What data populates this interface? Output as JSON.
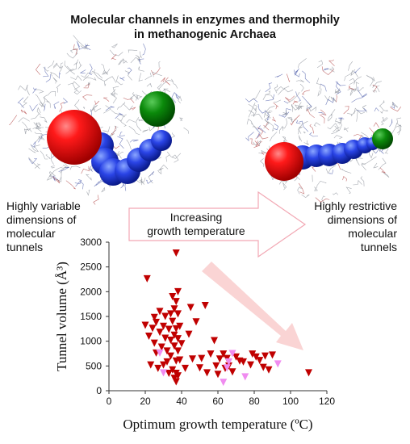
{
  "title_line1": "Molecular channels in enzymes and thermophily",
  "title_line2": "in methanogenic Archaea",
  "left_text": [
    "Highly variable",
    "dimensions of",
    "molecular",
    "tunnels"
  ],
  "right_text": [
    "Highly restrictive",
    "dimensions of",
    "molecular",
    "tunnels"
  ],
  "arrow_text": [
    "Increasing",
    "growth temperature"
  ],
  "colors": {
    "series_main": "#c00000",
    "series_light": "#f08cf0",
    "arrow_fill": "#ffffff",
    "arrow_stroke": "#f2a7b3",
    "trend_arrow": "#f9c9c9"
  },
  "chart_data": {
    "type": "scatter",
    "title": "",
    "xlabel": "Optimum growth temperature (ºC)",
    "ylabel": "Tunnel volume (Å³)",
    "xlim": [
      0,
      120
    ],
    "ylim": [
      0,
      3000
    ],
    "xticks": [
      0,
      20,
      40,
      60,
      80,
      100,
      120
    ],
    "yticks": [
      0,
      500,
      1000,
      1500,
      2000,
      2500,
      3000
    ],
    "xtick_labels": [
      "0",
      "20",
      "40",
      "60",
      "80",
      "100",
      "120"
    ],
    "ytick_labels": [
      "0",
      "500",
      "1000",
      "1500",
      "2000",
      "2500",
      "3000"
    ],
    "grid": false,
    "marker": "triangle-down",
    "series": [
      {
        "color": "#c00000",
        "points": [
          [
            20,
            1320
          ],
          [
            21,
            2260
          ],
          [
            22,
            1100
          ],
          [
            23,
            520
          ],
          [
            24,
            1260
          ],
          [
            25,
            960
          ],
          [
            25,
            1480
          ],
          [
            26,
            1380
          ],
          [
            26,
            760
          ],
          [
            27,
            450
          ],
          [
            28,
            1180
          ],
          [
            28,
            1600
          ],
          [
            29,
            880
          ],
          [
            30,
            1300
          ],
          [
            30,
            520
          ],
          [
            31,
            1060
          ],
          [
            31,
            1500
          ],
          [
            32,
            800
          ],
          [
            32,
            580
          ],
          [
            33,
            1240
          ],
          [
            33,
            350
          ],
          [
            34,
            1550
          ],
          [
            34,
            700
          ],
          [
            34,
            1020
          ],
          [
            35,
            1900
          ],
          [
            35,
            420
          ],
          [
            35,
            1400
          ],
          [
            36,
            1120
          ],
          [
            36,
            250
          ],
          [
            36,
            900
          ],
          [
            36,
            1650
          ],
          [
            37,
            2780
          ],
          [
            37,
            1800
          ],
          [
            37,
            1250
          ],
          [
            37,
            600
          ],
          [
            37,
            350
          ],
          [
            37,
            180
          ],
          [
            38,
            2000
          ],
          [
            38,
            1550
          ],
          [
            38,
            1050
          ],
          [
            38,
            800
          ],
          [
            38,
            300
          ],
          [
            39,
            1300
          ],
          [
            39,
            620
          ],
          [
            40,
            950
          ],
          [
            42,
            450
          ],
          [
            44,
            1140
          ],
          [
            45,
            1680
          ],
          [
            46,
            640
          ],
          [
            48,
            1390
          ],
          [
            50,
            460
          ],
          [
            51,
            650
          ],
          [
            53,
            1720
          ],
          [
            54,
            360
          ],
          [
            56,
            740
          ],
          [
            58,
            1010
          ],
          [
            59,
            500
          ],
          [
            60,
            330
          ],
          [
            61,
            640
          ],
          [
            63,
            740
          ],
          [
            64,
            450
          ],
          [
            65,
            650
          ],
          [
            66,
            500
          ],
          [
            68,
            380
          ],
          [
            70,
            680
          ],
          [
            72,
            600
          ],
          [
            74,
            580
          ],
          [
            78,
            520
          ],
          [
            79,
            740
          ],
          [
            81,
            680
          ],
          [
            83,
            610
          ],
          [
            85,
            470
          ],
          [
            86,
            700
          ],
          [
            88,
            420
          ],
          [
            90,
            720
          ],
          [
            110,
            360
          ]
        ]
      },
      {
        "color": "#f08cf0",
        "points": [
          [
            28,
            760
          ],
          [
            30,
            360
          ],
          [
            63,
            170
          ],
          [
            65,
            460
          ],
          [
            66,
            580
          ],
          [
            68,
            750
          ],
          [
            75,
            280
          ],
          [
            93,
            540
          ]
        ]
      }
    ]
  }
}
